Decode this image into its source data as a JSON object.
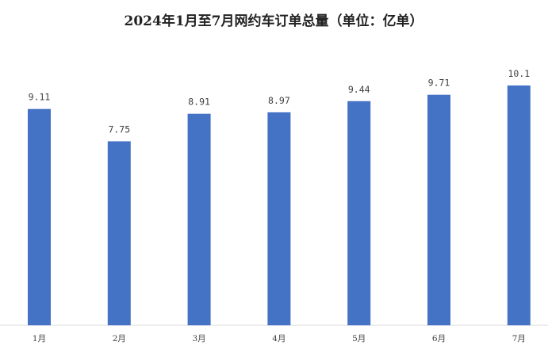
{
  "chart_data": {
    "type": "bar",
    "title": "2024年1月至7月网约车订单总量（单位：亿单）",
    "categories": [
      "1月",
      "2月",
      "3月",
      "4月",
      "5月",
      "6月",
      "7月"
    ],
    "values": [
      9.11,
      7.75,
      8.91,
      8.97,
      9.44,
      9.71,
      10.1
    ],
    "value_labels": [
      "9.11",
      "7.75",
      "8.91",
      "8.97",
      "9.44",
      "9.71",
      "10.1"
    ],
    "xlabel": "",
    "ylabel": "",
    "ylim": [
      0,
      13.7
    ],
    "grid": false,
    "legend": "none",
    "bar_color": "#4472C4"
  }
}
